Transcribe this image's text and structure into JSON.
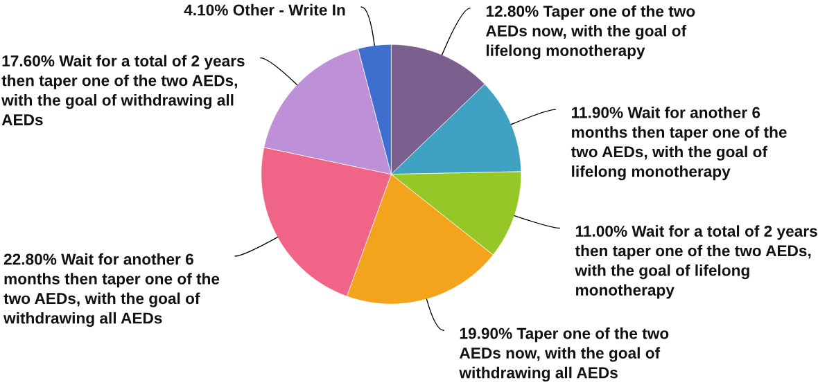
{
  "chart_data": {
    "type": "pie",
    "categories": [
      "Taper one of the two\nAEDs now, with the goal of\nlifelong monotherapy",
      "Wait for another 6\nmonths then taper one of the\ntwo AEDs, with the goal of\nlifelong monotherapy",
      "Wait for a total of 2 years\nthen taper one of the two AEDs,\nwith the goal of lifelong\nmonotherapy",
      "Taper one of the two\nAEDs now, with the goal of\nwithdrawing all AEDs",
      "Wait for another 6\nmonths then taper one of the\ntwo AEDs, with the goal of\nwithdrawing all AEDs",
      "Wait for a total of 2 years\nthen taper one of the two AEDs,\nwith the goal of withdrawing all\nAEDs",
      "Other - Write In"
    ],
    "values": [
      12.8,
      11.9,
      11.0,
      19.9,
      22.8,
      17.6,
      4.1
    ],
    "value_labels": [
      "12.80%",
      "11.90%",
      "11.00%",
      "19.90%",
      "22.80%",
      "17.60%",
      "4.10%"
    ],
    "colors": [
      "#7b5f8e",
      "#40a2c2",
      "#95c827",
      "#f4a41c",
      "#f06587",
      "#be90d8",
      "#3f6fcc"
    ]
  }
}
